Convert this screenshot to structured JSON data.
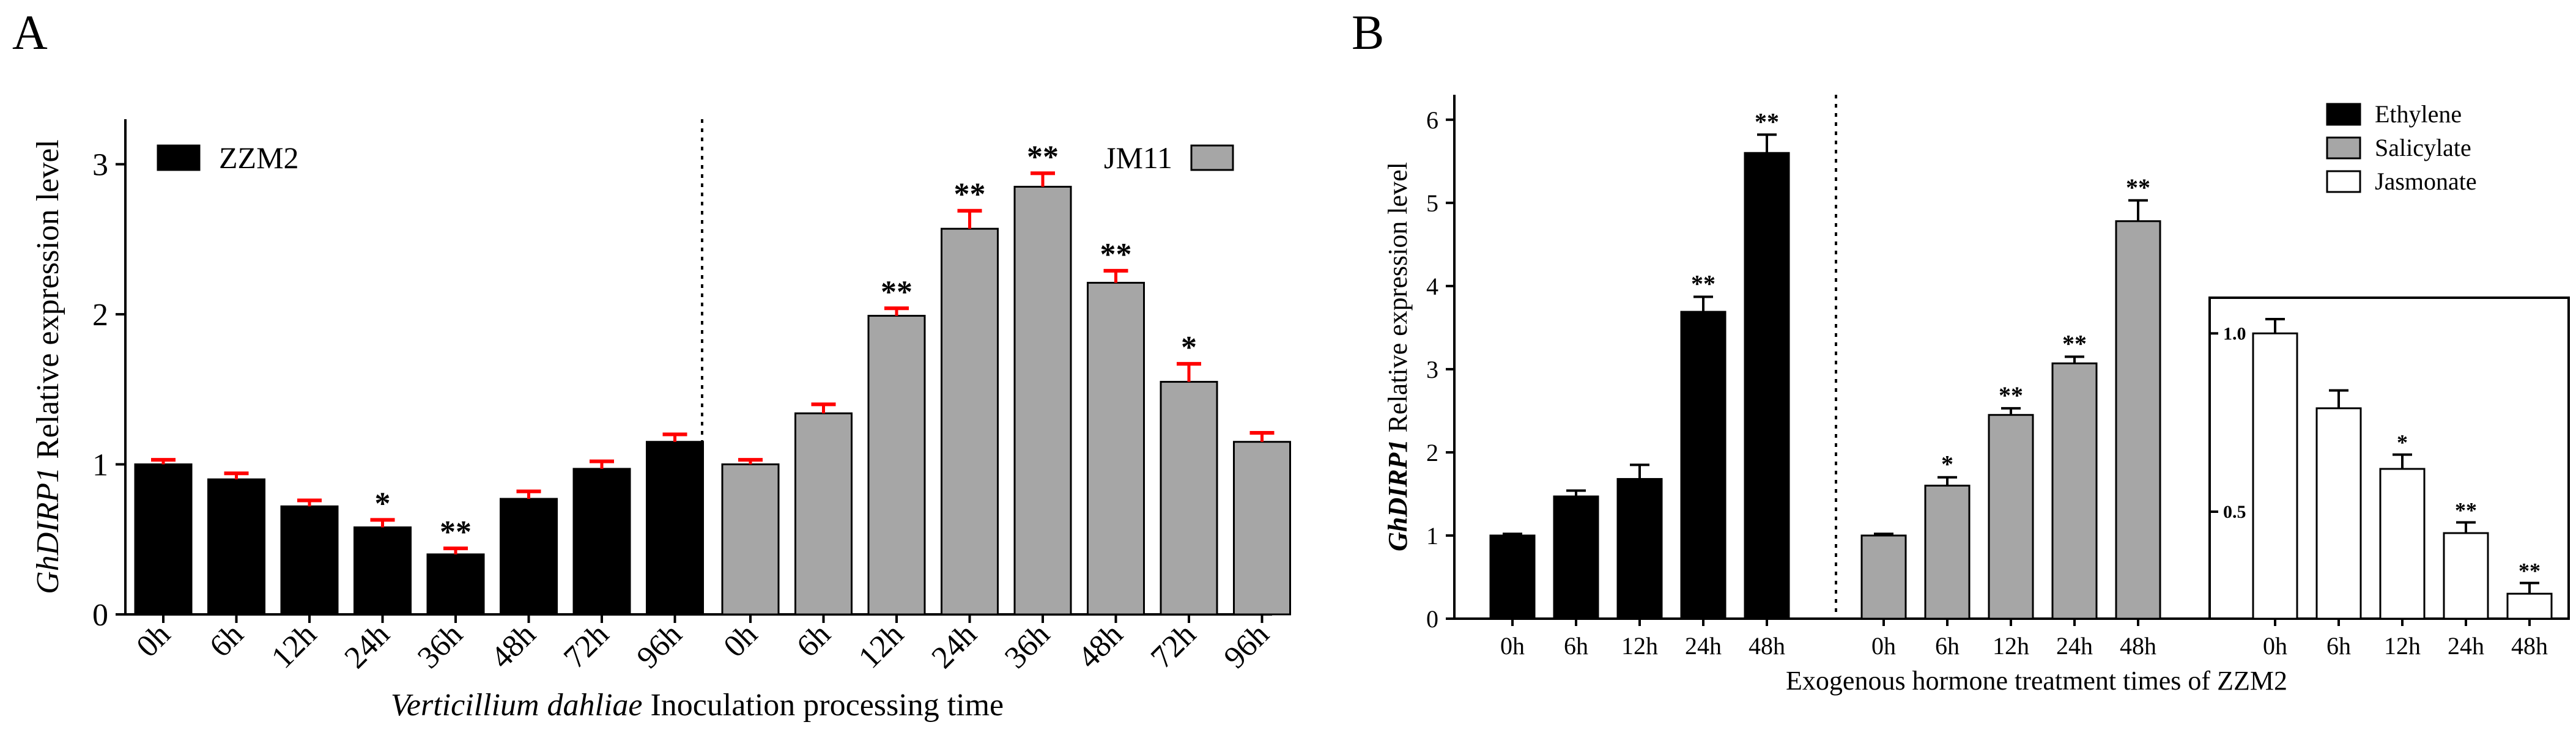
{
  "chart_data": [
    {
      "panel": "A",
      "type": "bar",
      "ylabel_italic": "GhDIRP1",
      "ylabel_rest": " Relative expression level",
      "xlabel_italic": "Verticillium dahliae",
      "xlabel_rest": " Inoculation processing time",
      "ylim": [
        0,
        3.3
      ],
      "yticks": [
        "0",
        "1",
        "2",
        "3"
      ],
      "categories": [
        "0h",
        "6h",
        "12h",
        "24h",
        "36h",
        "48h",
        "72h",
        "96h"
      ],
      "legend_placement": "top-left and top-right",
      "series": [
        {
          "name": "ZZM2",
          "color": "#000000",
          "errColor": "#ff0000",
          "values": [
            1.0,
            0.9,
            0.72,
            0.58,
            0.4,
            0.77,
            0.97,
            1.15
          ],
          "errors": [
            0.03,
            0.04,
            0.04,
            0.05,
            0.04,
            0.05,
            0.05,
            0.05
          ],
          "marks": [
            "",
            "",
            "",
            "*",
            "**",
            "",
            "",
            ""
          ]
        },
        {
          "name": "JM11",
          "color": "#a6a6a6",
          "errColor": "#ff0000",
          "values": [
            1.0,
            1.34,
            1.99,
            2.57,
            2.85,
            2.21,
            1.55,
            1.15
          ],
          "errors": [
            0.03,
            0.06,
            0.05,
            0.12,
            0.09,
            0.08,
            0.12,
            0.06
          ],
          "marks": [
            "",
            "",
            "**",
            "**",
            "**",
            "**",
            "*",
            ""
          ]
        }
      ]
    },
    {
      "panel": "B",
      "type": "bar",
      "ylabel_italic": "GhDIRP1",
      "ylabel_rest": " Relative expression level",
      "xlabel": "Exogenous hormone treatment times of ZZM2",
      "ylim": [
        0,
        6.3
      ],
      "yticks": [
        "0",
        "1",
        "2",
        "3",
        "4",
        "5",
        "6"
      ],
      "categories": [
        "0h",
        "6h",
        "12h",
        "24h",
        "48h"
      ],
      "legend_placement": "top-right",
      "series": [
        {
          "name": "Ethylene",
          "color": "#000000",
          "values": [
            1.0,
            1.47,
            1.68,
            3.69,
            5.6
          ],
          "errors": [
            0.02,
            0.07,
            0.17,
            0.18,
            0.22
          ],
          "marks": [
            "",
            "",
            "",
            "**",
            "**"
          ]
        },
        {
          "name": "Salicylate",
          "color": "#a6a6a6",
          "values": [
            1.0,
            1.6,
            2.45,
            3.07,
            4.78
          ],
          "errors": [
            0.02,
            0.1,
            0.08,
            0.08,
            0.25
          ],
          "marks": [
            "",
            "*",
            "**",
            "**",
            "**"
          ]
        },
        {
          "name": "Jasmonate",
          "color": "#ffffff",
          "inset": true,
          "ylim": [
            0.2,
            1.1
          ],
          "yticks": [
            "0.5",
            "1.0"
          ],
          "values": [
            1.0,
            0.79,
            0.62,
            0.44,
            0.27
          ],
          "errors": [
            0.04,
            0.05,
            0.04,
            0.03,
            0.03
          ],
          "marks": [
            "",
            "",
            "*",
            "**",
            "**"
          ]
        }
      ]
    }
  ]
}
